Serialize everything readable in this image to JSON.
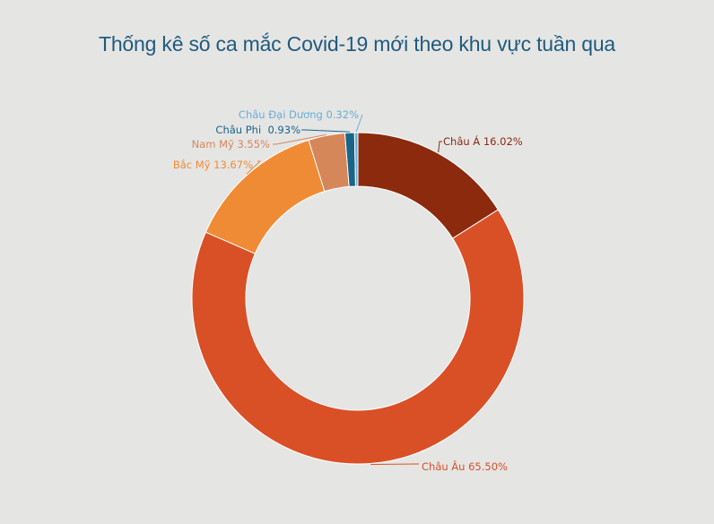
{
  "chart_data": {
    "type": "pie",
    "title": "Thống kê số ca mắc Covid-19 mới theo khu vực tuần qua",
    "slices": [
      {
        "name": "Châu Á",
        "value": 16.02,
        "label": "Châu Á 16.02%",
        "color": "#8b2a0d"
      },
      {
        "name": "Châu Âu",
        "value": 65.5,
        "label": "Châu Âu 65.50%",
        "color": "#d95026"
      },
      {
        "name": "Bắc Mỹ",
        "value": 13.67,
        "label": "Bắc Mỹ 13.67%",
        "color": "#f08b35"
      },
      {
        "name": "Nam Mỹ",
        "value": 3.55,
        "label": "Nam Mỹ 3.55%",
        "color": "#d6875a"
      },
      {
        "name": "Châu Phi",
        "value": 0.93,
        "label": "Châu Phi  0.93%",
        "color": "#1a6488"
      },
      {
        "name": "Châu Đại Dương",
        "value": 0.32,
        "label": "Châu Đại Dương 0.32%",
        "color": "#6aaed4"
      }
    ],
    "legend": "none"
  }
}
